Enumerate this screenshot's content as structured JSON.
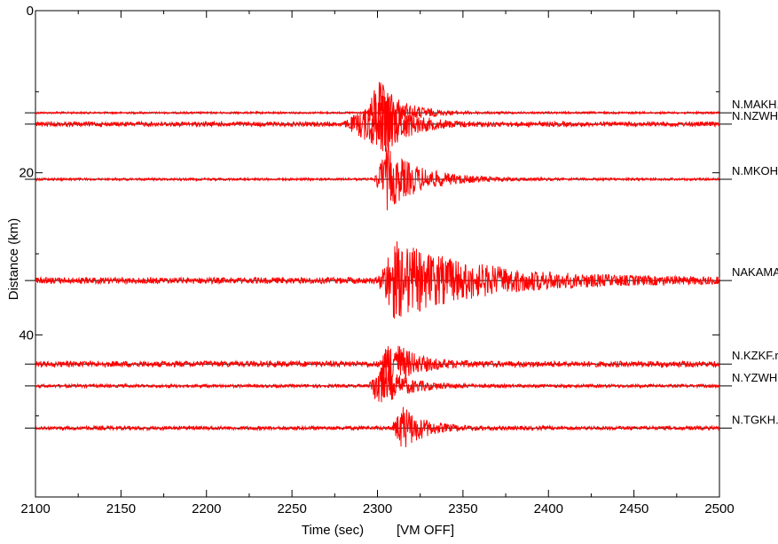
{
  "chart_data": {
    "type": "line",
    "subtype": "seismic-record-section",
    "xlabel": "Time (sec)",
    "ylabel": "Distance (km)",
    "mode_label": "[VM OFF]",
    "xlim": [
      2100,
      2500
    ],
    "ylim": [
      0,
      60
    ],
    "y_inverted": true,
    "xticks": [
      2100,
      2150,
      2200,
      2250,
      2300,
      2350,
      2400,
      2450,
      2500
    ],
    "yticks": [
      0,
      20,
      40
    ],
    "grid": false,
    "trace_color": "#ff0000",
    "baseline_color": "#000000",
    "traces": [
      {
        "label": "N.MAKH.",
        "distance": 12.6,
        "onset": 2294,
        "peak": 2300,
        "noise": 0.5,
        "event_amp": 5.5,
        "coda": 2340
      },
      {
        "label": "N.NZWH.",
        "distance": 14.0,
        "onset": 2280,
        "peak": 2305,
        "noise": 1.2,
        "event_amp": 4.5,
        "coda": 2345
      },
      {
        "label": "N.MKOH.",
        "distance": 20.8,
        "onset": 2298,
        "peak": 2305,
        "noise": 0.6,
        "event_amp": 5.0,
        "coda": 2365
      },
      {
        "label": "NAKAMA.",
        "distance": 33.3,
        "onset": 2300,
        "peak": 2310,
        "noise": 1.6,
        "event_amp": 6.0,
        "coda": 2460
      },
      {
        "label": "N.KZKF.r",
        "distance": 43.6,
        "onset": 2301,
        "peak": 2308,
        "noise": 1.5,
        "event_amp": 4.0,
        "coda": 2345
      },
      {
        "label": "N.YZWH.",
        "distance": 46.3,
        "onset": 2295,
        "peak": 2300,
        "noise": 0.8,
        "event_amp": 3.5,
        "coda": 2345
      },
      {
        "label": "N.TGKH.r",
        "distance": 51.5,
        "onset": 2308,
        "peak": 2315,
        "noise": 1.0,
        "event_amp": 3.5,
        "coda": 2350
      }
    ]
  }
}
